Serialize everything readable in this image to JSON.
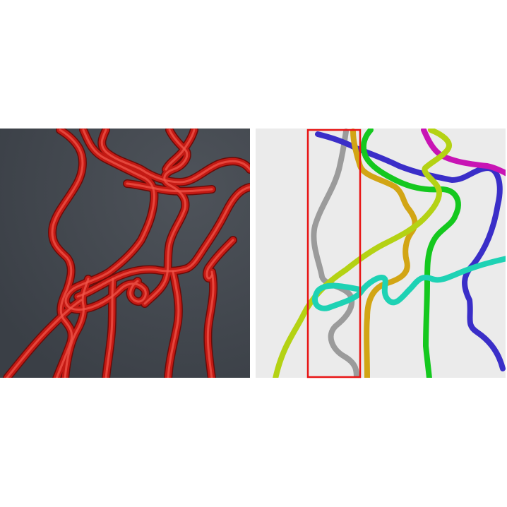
{
  "figure": {
    "left_panel": {
      "name": "rendered-tubes",
      "background": "#40454c",
      "tube_color": "#c41a14",
      "tube_highlight": "#f0554a",
      "tube_shadow": "#6a0b08"
    },
    "right_panel": {
      "name": "segmented-curves",
      "background": "#ebebeb",
      "highlight_box_color": "#e81414",
      "curves": [
        {
          "name": "gray",
          "color": "#9b9b9b"
        },
        {
          "name": "blue",
          "color": "#3a2ec8"
        },
        {
          "name": "magenta",
          "color": "#c814b4"
        },
        {
          "name": "green",
          "color": "#14c81e"
        },
        {
          "name": "orange",
          "color": "#d2a514"
        },
        {
          "name": "yellow-green",
          "color": "#b4d214"
        },
        {
          "name": "teal",
          "color": "#1ed2b4"
        }
      ]
    }
  }
}
